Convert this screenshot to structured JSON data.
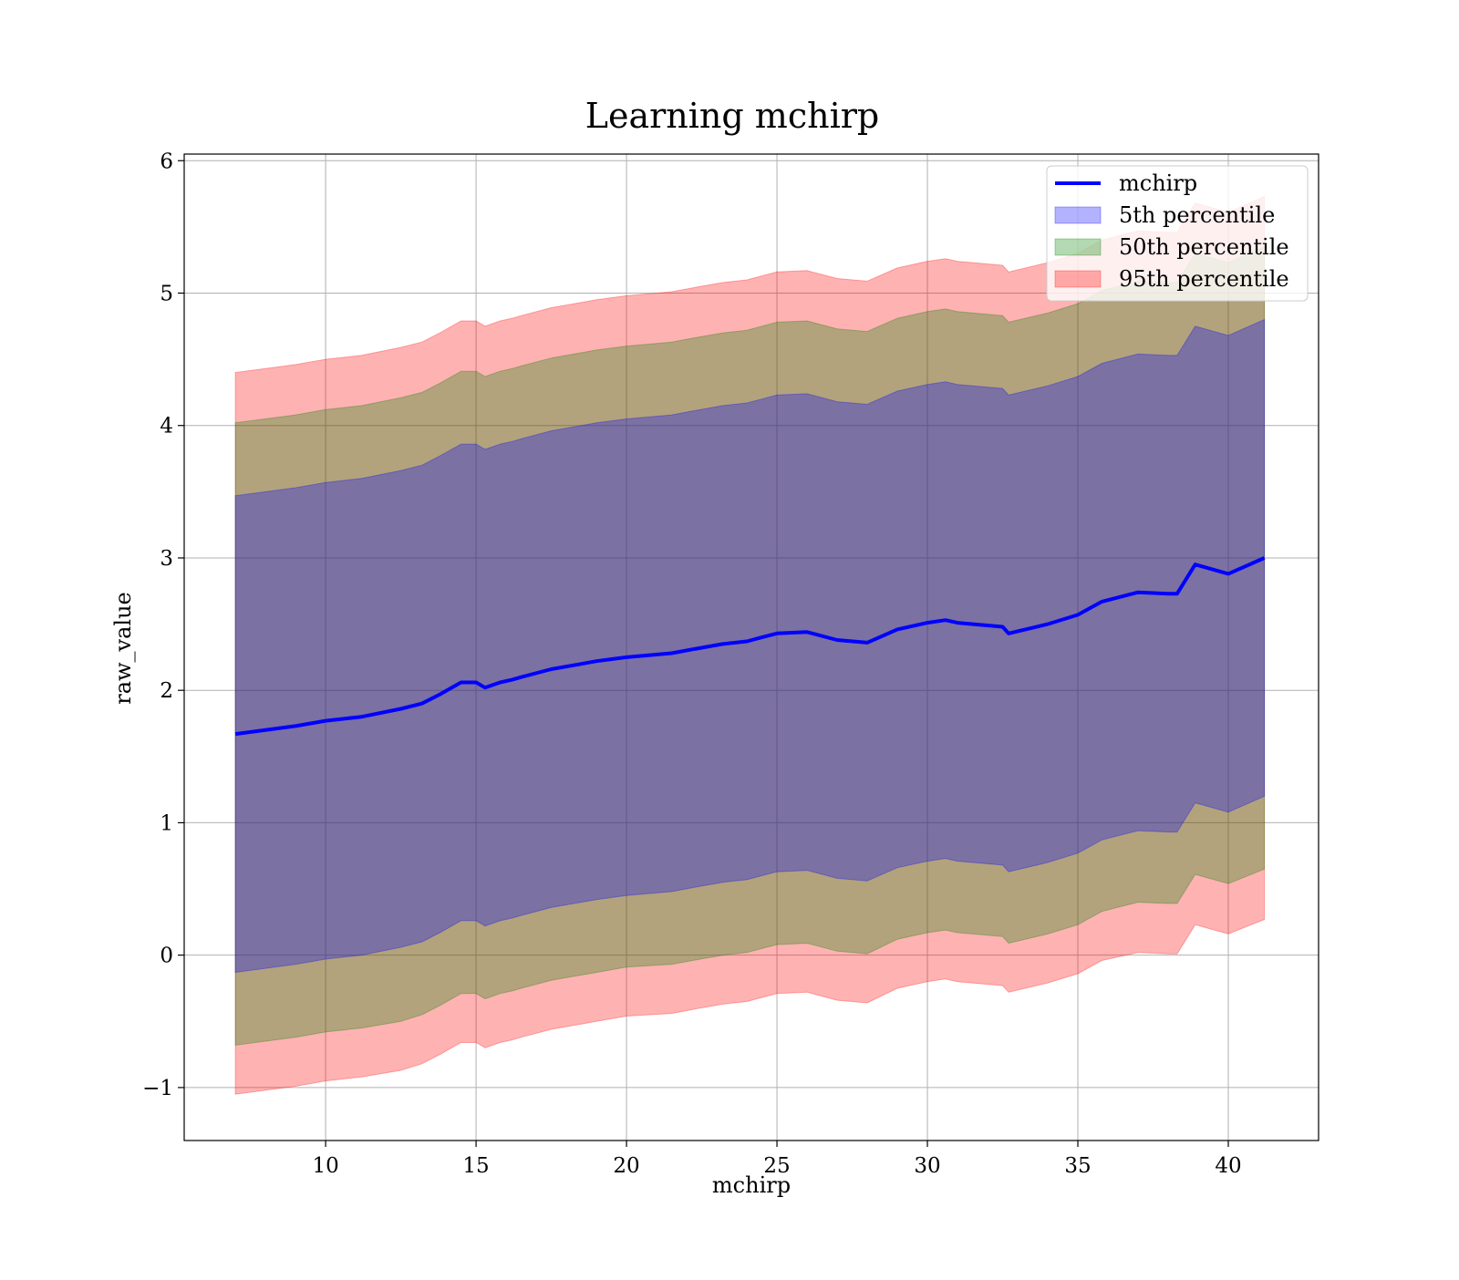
{
  "chart_data": {
    "type": "line",
    "title": "Learning mchirp",
    "xlabel": "mchirp",
    "ylabel": "raw_value",
    "xlim": [
      5.3,
      43.0
    ],
    "ylim": [
      -1.4,
      6.05
    ],
    "xticks": [
      10,
      15,
      20,
      25,
      30,
      35,
      40
    ],
    "xtick_labels": [
      "10",
      "15",
      "20",
      "25",
      "30",
      "35",
      "40"
    ],
    "yticks": [
      -1,
      0,
      1,
      2,
      3,
      4,
      5,
      6
    ],
    "ytick_labels": [
      "−1",
      "0",
      "1",
      "2",
      "3",
      "4",
      "5",
      "6"
    ],
    "grid": true,
    "legend": {
      "placement": "top-right",
      "entries": [
        {
          "label": "mchirp",
          "kind": "line",
          "color": "#0000ff"
        },
        {
          "label": "5th percentile",
          "kind": "patch",
          "color": "#0000ff"
        },
        {
          "label": "50th percentile",
          "kind": "patch",
          "color": "#008000"
        },
        {
          "label": "95th percentile",
          "kind": "patch",
          "color": "#ff0000"
        }
      ]
    },
    "x": [
      7.0,
      9.0,
      10.0,
      11.2,
      12.5,
      13.2,
      13.8,
      14.5,
      15.0,
      15.3,
      15.8,
      16.2,
      16.5,
      17.5,
      18.5,
      19.0,
      20.0,
      21.5,
      22.2,
      23.2,
      24.0,
      24.5,
      25.0,
      26.0,
      27.0,
      28.0,
      29.0,
      30.0,
      30.6,
      31.0,
      32.5,
      32.7,
      34.0,
      35.0,
      35.8,
      37.0,
      38.0,
      38.3,
      38.9,
      40.0,
      41.2
    ],
    "series": [
      {
        "name": "mchirp",
        "color": "#0000ff",
        "values": [
          1.67,
          1.73,
          1.77,
          1.8,
          1.86,
          1.9,
          1.97,
          2.06,
          2.06,
          2.02,
          2.06,
          2.08,
          2.1,
          2.16,
          2.2,
          2.22,
          2.25,
          2.28,
          2.31,
          2.35,
          2.37,
          2.4,
          2.43,
          2.44,
          2.38,
          2.36,
          2.46,
          2.51,
          2.53,
          2.51,
          2.48,
          2.43,
          2.5,
          2.57,
          2.67,
          2.74,
          2.73,
          2.73,
          2.95,
          2.88,
          3.0
        ]
      }
    ],
    "bands": [
      {
        "name": "95th percentile",
        "color": "#ff0000",
        "opacity": 0.3,
        "lower": [
          -1.05,
          -0.99,
          -0.95,
          -0.92,
          -0.87,
          -0.82,
          -0.75,
          -0.66,
          -0.66,
          -0.7,
          -0.66,
          -0.64,
          -0.62,
          -0.56,
          -0.52,
          -0.5,
          -0.46,
          -0.44,
          -0.41,
          -0.37,
          -0.35,
          -0.32,
          -0.29,
          -0.28,
          -0.34,
          -0.36,
          -0.25,
          -0.2,
          -0.18,
          -0.2,
          -0.23,
          -0.28,
          -0.21,
          -0.14,
          -0.04,
          0.02,
          0.01,
          0.01,
          0.23,
          0.16,
          0.27
        ],
        "upper": [
          4.4,
          4.46,
          4.5,
          4.53,
          4.59,
          4.63,
          4.7,
          4.79,
          4.79,
          4.75,
          4.79,
          4.81,
          4.83,
          4.89,
          4.93,
          4.95,
          4.98,
          5.01,
          5.04,
          5.08,
          5.1,
          5.13,
          5.16,
          5.17,
          5.11,
          5.09,
          5.19,
          5.24,
          5.26,
          5.24,
          5.21,
          5.16,
          5.23,
          5.3,
          5.4,
          5.47,
          5.46,
          5.46,
          5.68,
          5.61,
          5.73
        ]
      },
      {
        "name": "50th percentile",
        "color": "#008000",
        "opacity": 0.3,
        "lower": [
          -0.68,
          -0.62,
          -0.58,
          -0.55,
          -0.5,
          -0.45,
          -0.38,
          -0.29,
          -0.29,
          -0.33,
          -0.29,
          -0.27,
          -0.25,
          -0.19,
          -0.15,
          -0.13,
          -0.09,
          -0.07,
          -0.04,
          0.0,
          0.02,
          0.05,
          0.08,
          0.09,
          0.03,
          0.01,
          0.12,
          0.17,
          0.19,
          0.17,
          0.14,
          0.09,
          0.16,
          0.23,
          0.33,
          0.4,
          0.39,
          0.39,
          0.61,
          0.54,
          0.65
        ],
        "upper": [
          4.02,
          4.08,
          4.12,
          4.15,
          4.21,
          4.25,
          4.32,
          4.41,
          4.41,
          4.37,
          4.41,
          4.43,
          4.45,
          4.51,
          4.55,
          4.57,
          4.6,
          4.63,
          4.66,
          4.7,
          4.72,
          4.75,
          4.78,
          4.79,
          4.73,
          4.71,
          4.81,
          4.86,
          4.88,
          4.86,
          4.83,
          4.78,
          4.85,
          4.92,
          5.02,
          5.09,
          5.08,
          5.08,
          5.3,
          5.23,
          5.35
        ]
      },
      {
        "name": "5th percentile",
        "color": "#0000ff",
        "opacity": 0.3,
        "lower": [
          -0.13,
          -0.07,
          -0.03,
          0.0,
          0.06,
          0.1,
          0.17,
          0.26,
          0.26,
          0.22,
          0.26,
          0.28,
          0.3,
          0.36,
          0.4,
          0.42,
          0.45,
          0.48,
          0.51,
          0.55,
          0.57,
          0.6,
          0.63,
          0.64,
          0.58,
          0.56,
          0.66,
          0.71,
          0.73,
          0.71,
          0.68,
          0.63,
          0.7,
          0.77,
          0.87,
          0.94,
          0.93,
          0.93,
          1.15,
          1.08,
          1.2
        ],
        "upper": [
          3.47,
          3.53,
          3.57,
          3.6,
          3.66,
          3.7,
          3.77,
          3.86,
          3.86,
          3.82,
          3.86,
          3.88,
          3.9,
          3.96,
          4.0,
          4.02,
          4.05,
          4.08,
          4.11,
          4.15,
          4.17,
          4.2,
          4.23,
          4.24,
          4.18,
          4.16,
          4.26,
          4.31,
          4.33,
          4.31,
          4.28,
          4.23,
          4.3,
          4.37,
          4.47,
          4.54,
          4.53,
          4.53,
          4.75,
          4.68,
          4.8
        ]
      }
    ]
  }
}
